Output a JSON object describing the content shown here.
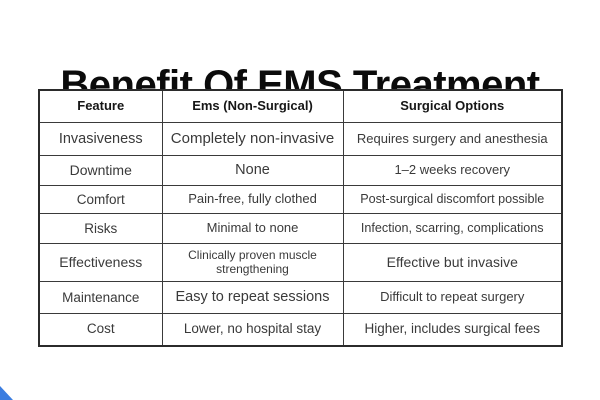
{
  "title": "Benefit Of EMS Treatment",
  "table": {
    "columns": [
      "Feature",
      "Ems (Non-Surgical)",
      "Surgical Options"
    ],
    "rows": [
      {
        "feature": "Invasiveness",
        "ems": "Completely non-invasive",
        "surgical": "Requires surgery and anesthesia"
      },
      {
        "feature": "Downtime",
        "ems": "None",
        "surgical": "1–2 weeks recovery"
      },
      {
        "feature": "Comfort",
        "ems": "Pain-free, fully clothed",
        "surgical": "Post-surgical discomfort possible"
      },
      {
        "feature": "Risks",
        "ems": "Minimal to none",
        "surgical": "Infection, scarring, complications"
      },
      {
        "feature": "Effectiveness",
        "ems": "Clinically proven muscle strengthening",
        "surgical": "Effective but invasive"
      },
      {
        "feature": "Maintenance",
        "ems": "Easy to repeat sessions",
        "surgical": "Difficult to repeat surgery"
      },
      {
        "feature": "Cost",
        "ems": "Lower, no hospital stay",
        "surgical": "Higher, includes surgical fees"
      }
    ]
  },
  "colors": {
    "background": "#ffffff",
    "title_text": "#0b0b0b",
    "body_text": "#3a3a3a",
    "table_border": "#2b2b2b",
    "corner_accent": "#3b7de0"
  }
}
